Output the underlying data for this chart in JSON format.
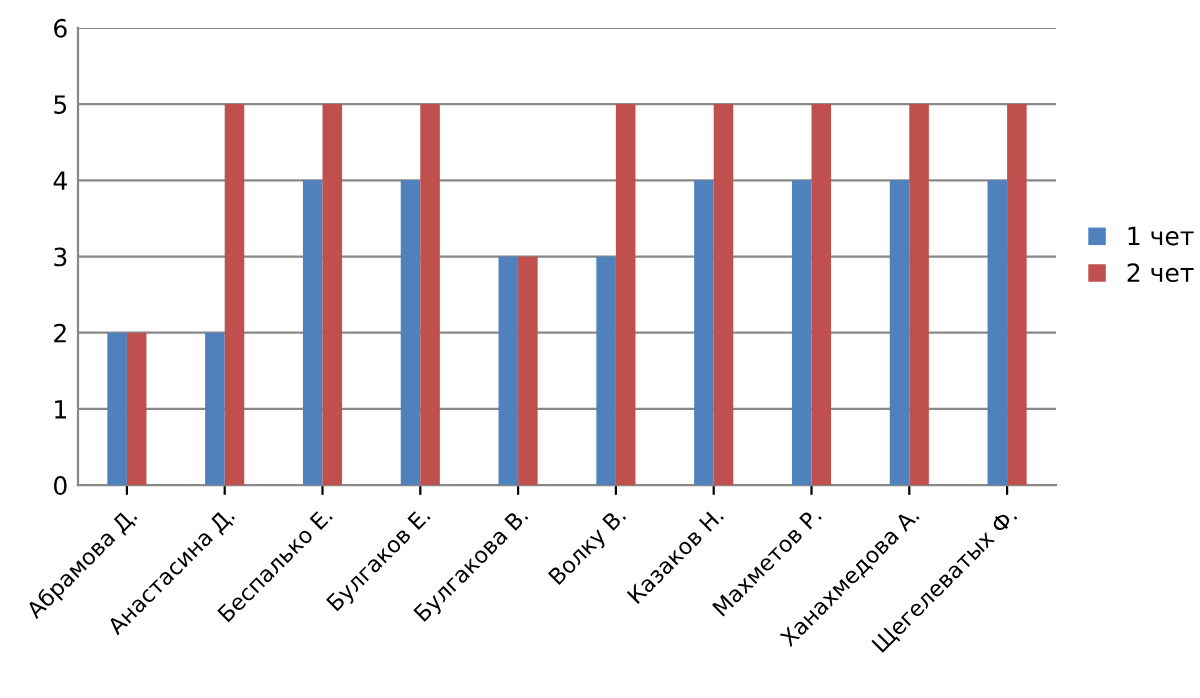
{
  "chart_data": {
    "type": "bar",
    "categories": [
      "Абрамова Д.",
      "Анастасина Д.",
      "Беспалько Е.",
      "Булгаков Е.",
      "Булгакова В.",
      "Волку В.",
      "Казаков Н.",
      "Махметов Р.",
      "Ханахмедова А.",
      "Щегелеватых Ф."
    ],
    "series": [
      {
        "name": "1 чет",
        "color": "#4f81bd",
        "values": [
          2,
          2,
          4,
          4,
          3,
          3,
          4,
          4,
          4,
          4
        ]
      },
      {
        "name": "2 чет",
        "color": "#c0504d",
        "values": [
          2,
          5,
          5,
          5,
          3,
          5,
          5,
          5,
          5,
          5
        ]
      }
    ],
    "ylim": [
      0,
      6
    ],
    "yticks": [
      0,
      1,
      2,
      3,
      4,
      5,
      6
    ],
    "grid": "y",
    "legend": "right"
  }
}
